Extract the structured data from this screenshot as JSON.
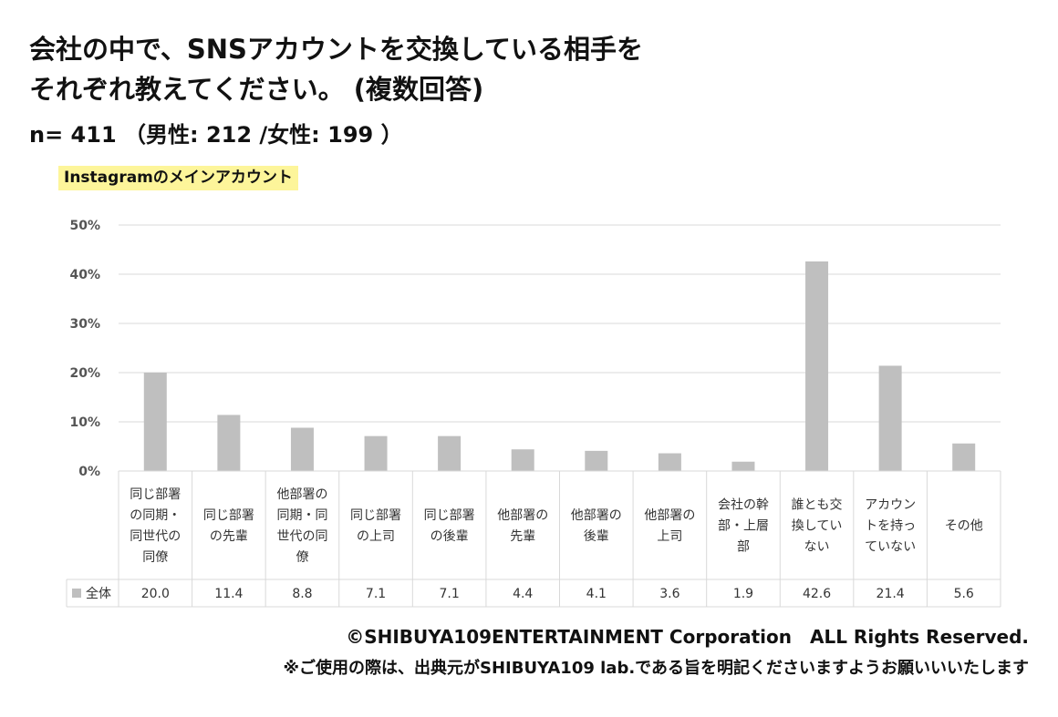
{
  "header": {
    "title_line1": "会社の中で、SNSアカウントを交換している相手を",
    "title_line2": "それぞれ教えてください。 (複数回答)",
    "sample": "n= 411 （男性: 212 /女性: 199 ）"
  },
  "chart_data": {
    "type": "bar",
    "subtitle": "Instagramのメインアカウント",
    "categories": [
      [
        "同じ部署",
        "の同期・",
        "同世代の",
        "同僚"
      ],
      [
        "同じ部署",
        "の先輩"
      ],
      [
        "他部署の",
        "同期・同",
        "世代の同",
        "僚"
      ],
      [
        "同じ部署",
        "の上司"
      ],
      [
        "同じ部署",
        "の後輩"
      ],
      [
        "他部署の",
        "先輩"
      ],
      [
        "他部署の",
        "後輩"
      ],
      [
        "他部署の",
        "上司"
      ],
      [
        "会社の幹",
        "部・上層",
        "部"
      ],
      [
        "誰とも交",
        "換してい",
        "ない"
      ],
      [
        "アカウン",
        "トを持っ",
        "ていない"
      ],
      [
        "その他"
      ]
    ],
    "series": [
      {
        "name": "全体",
        "values": [
          20.0,
          11.4,
          8.8,
          7.1,
          7.1,
          4.4,
          4.1,
          3.6,
          1.9,
          42.6,
          21.4,
          5.6
        ],
        "labels": [
          "20.0",
          "11.4",
          "8.8",
          "7.1",
          "7.1",
          "4.4",
          "4.1",
          "3.6",
          "1.9",
          "42.6",
          "21.4",
          "5.6"
        ],
        "color": "#bfbfbf"
      }
    ],
    "yticks": [
      0,
      10,
      20,
      30,
      40,
      50
    ],
    "ytick_labels": [
      "0%",
      "10%",
      "20%",
      "30%",
      "40%",
      "50%"
    ],
    "ylim": [
      0,
      50
    ],
    "grid": true,
    "gridline_color": "#d9d9d9",
    "table_line_color": "#d9d9d9"
  },
  "footer": {
    "copyright": "©SHIBUYA109ENTERTAINMENT Corporation　ALL Rights Reserved.",
    "note": "※ご使用の際は、出典元がSHIBUYA109 lab.である旨を明記くださいますようお願いいいたします"
  }
}
